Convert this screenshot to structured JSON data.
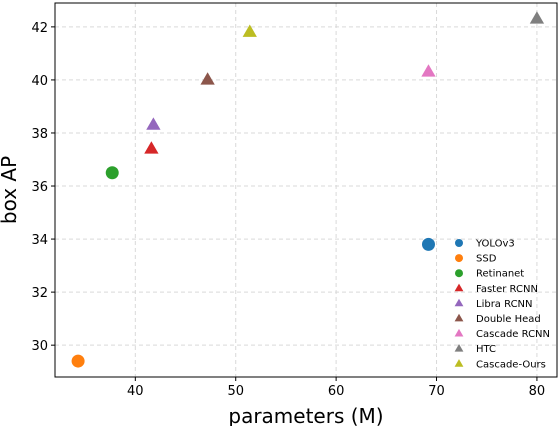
{
  "chart_data": {
    "type": "scatter",
    "title": "",
    "xlabel": "parameters (M)",
    "ylabel": "box AP",
    "xlim": [
      32,
      82
    ],
    "ylim": [
      28.8,
      42.9
    ],
    "xticks": [
      40,
      50,
      60,
      70,
      80
    ],
    "yticks": [
      30,
      32,
      34,
      36,
      38,
      40,
      42
    ],
    "grid": true,
    "legend_position": "lower-right",
    "series": [
      {
        "name": "YOLOv3",
        "marker": "circle",
        "color": "#1f77b4",
        "x": [
          69.2
        ],
        "y": [
          33.8
        ]
      },
      {
        "name": "SSD",
        "marker": "circle",
        "color": "#ff7f0e",
        "x": [
          34.3
        ],
        "y": [
          29.4
        ]
      },
      {
        "name": "Retinanet",
        "marker": "circle",
        "color": "#2ca02c",
        "x": [
          37.7
        ],
        "y": [
          36.5
        ]
      },
      {
        "name": "Faster RCNN",
        "marker": "triangle",
        "color": "#d62728",
        "x": [
          41.6
        ],
        "y": [
          37.4
        ]
      },
      {
        "name": "Libra RCNN",
        "marker": "triangle",
        "color": "#9467bd",
        "x": [
          41.8
        ],
        "y": [
          38.3
        ]
      },
      {
        "name": "Double Head",
        "marker": "triangle",
        "color": "#8c564b",
        "x": [
          47.2
        ],
        "y": [
          40.0
        ]
      },
      {
        "name": "Cascade RCNN",
        "marker": "triangle",
        "color": "#e377c2",
        "x": [
          69.2
        ],
        "y": [
          40.3
        ]
      },
      {
        "name": "HTC",
        "marker": "triangle",
        "color": "#7f7f7f",
        "x": [
          80.0
        ],
        "y": [
          42.3
        ]
      },
      {
        "name": "Cascade-Ours",
        "marker": "triangle",
        "color": "#bcbd22",
        "x": [
          51.4
        ],
        "y": [
          41.8
        ]
      }
    ]
  }
}
